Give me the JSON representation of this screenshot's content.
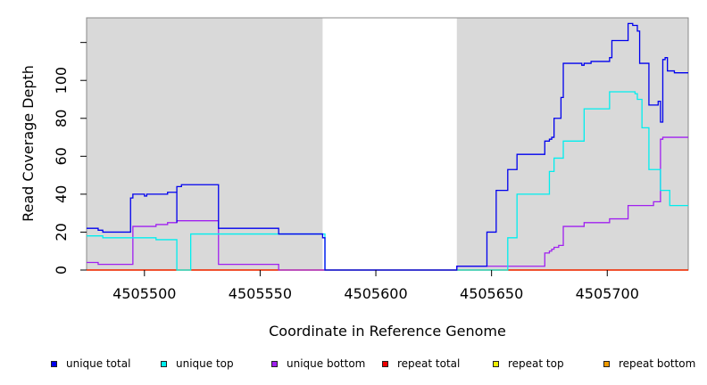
{
  "chart_data": {
    "type": "line",
    "title": "",
    "xlabel": "Coordinate in Reference Genome",
    "ylabel": "Read Coverage Depth",
    "xlim": [
      4505475,
      4505735
    ],
    "ylim": [
      0,
      133
    ],
    "x_ticks": [
      4505500,
      4505550,
      4505600,
      4505650,
      4505700
    ],
    "y_ticks": [
      0,
      20,
      40,
      60,
      80,
      100,
      120
    ],
    "y_tick_labels": [
      "0",
      "20",
      "40",
      "60",
      "80",
      "100",
      ""
    ],
    "shaded_regions": [
      [
        4505475,
        4505577
      ],
      [
        4505635,
        4505735
      ]
    ],
    "shade_color": "#d9d9d9",
    "grid": false,
    "legend_position": "bottom",
    "series": [
      {
        "name": "unique total",
        "color": "#0000ee",
        "x": [
          4505475,
          4505480,
          4505482,
          4505494,
          4505495,
          4505500,
          4505501,
          4505503,
          4505510,
          4505514,
          4505514,
          4505515,
          4505516,
          4505532,
          4505532,
          4505558,
          4505558,
          4505577,
          4505578,
          4505590,
          4505600,
          4505620,
          4505635,
          4505648,
          4505652,
          4505657,
          4505661,
          4505673,
          4505675,
          4505676,
          4505677,
          4505680,
          4505681,
          4505689,
          4505690,
          4505693,
          4505701,
          4505702,
          4505709,
          4505711,
          4505713,
          4505714,
          4505718,
          4505722,
          4505723,
          4505724,
          4505725,
          4505726,
          4505729
        ],
        "y": [
          22,
          21,
          20,
          38,
          40,
          39,
          40,
          40,
          41,
          25,
          44,
          44,
          45,
          22,
          22,
          19,
          19,
          17,
          0,
          0,
          0,
          0,
          2,
          20,
          42,
          53,
          61,
          68,
          69,
          70,
          80,
          91,
          109,
          108,
          109,
          110,
          112,
          121,
          130,
          129,
          126,
          109,
          87,
          89,
          78,
          111,
          112,
          105,
          104
        ]
      },
      {
        "name": "unique top",
        "color": "#00eeee",
        "x": [
          4505475,
          4505482,
          4505495,
          4505500,
          4505505,
          4505514,
          4505520,
          4505540,
          4505558,
          4505577,
          4505578,
          4505600,
          4505635,
          4505648,
          4505652,
          4505657,
          4505661,
          4505675,
          4505677,
          4505681,
          4505690,
          4505701,
          4505712,
          4505713,
          4505715,
          4505718,
          4505723,
          4505727
        ],
        "y": [
          18,
          17,
          17,
          17,
          16,
          0,
          19,
          19,
          19,
          19,
          0,
          0,
          0,
          0,
          0,
          17,
          40,
          52,
          59,
          68,
          85,
          94,
          93,
          90,
          75,
          53,
          42,
          34
        ]
      },
      {
        "name": "unique bottom",
        "color": "#a020f0",
        "x": [
          4505475,
          4505480,
          4505495,
          4505500,
          4505505,
          4505510,
          4505514,
          4505532,
          4505540,
          4505558,
          4505590,
          4505620,
          4505635,
          4505673,
          4505675,
          4505676,
          4505677,
          4505679,
          4505681,
          4505688,
          4505690,
          4505701,
          4505709,
          4505720,
          4505723,
          4505724
        ],
        "y": [
          4,
          3,
          23,
          23,
          24,
          25,
          26,
          3,
          3,
          0,
          0,
          0,
          2,
          9,
          10,
          11,
          12,
          13,
          23,
          23,
          25,
          27,
          34,
          36,
          69,
          70
        ]
      },
      {
        "name": "repeat total",
        "color": "#ee0000",
        "x": [
          4505475,
          4505735
        ],
        "y": [
          0,
          0
        ]
      },
      {
        "name": "repeat top",
        "color": "#eeee00",
        "x": [
          4505475,
          4505735
        ],
        "y": [
          0,
          0
        ]
      },
      {
        "name": "repeat bottom",
        "color": "#ee9a00",
        "x": [
          4505475,
          4505735
        ],
        "y": [
          0,
          0
        ]
      }
    ]
  }
}
